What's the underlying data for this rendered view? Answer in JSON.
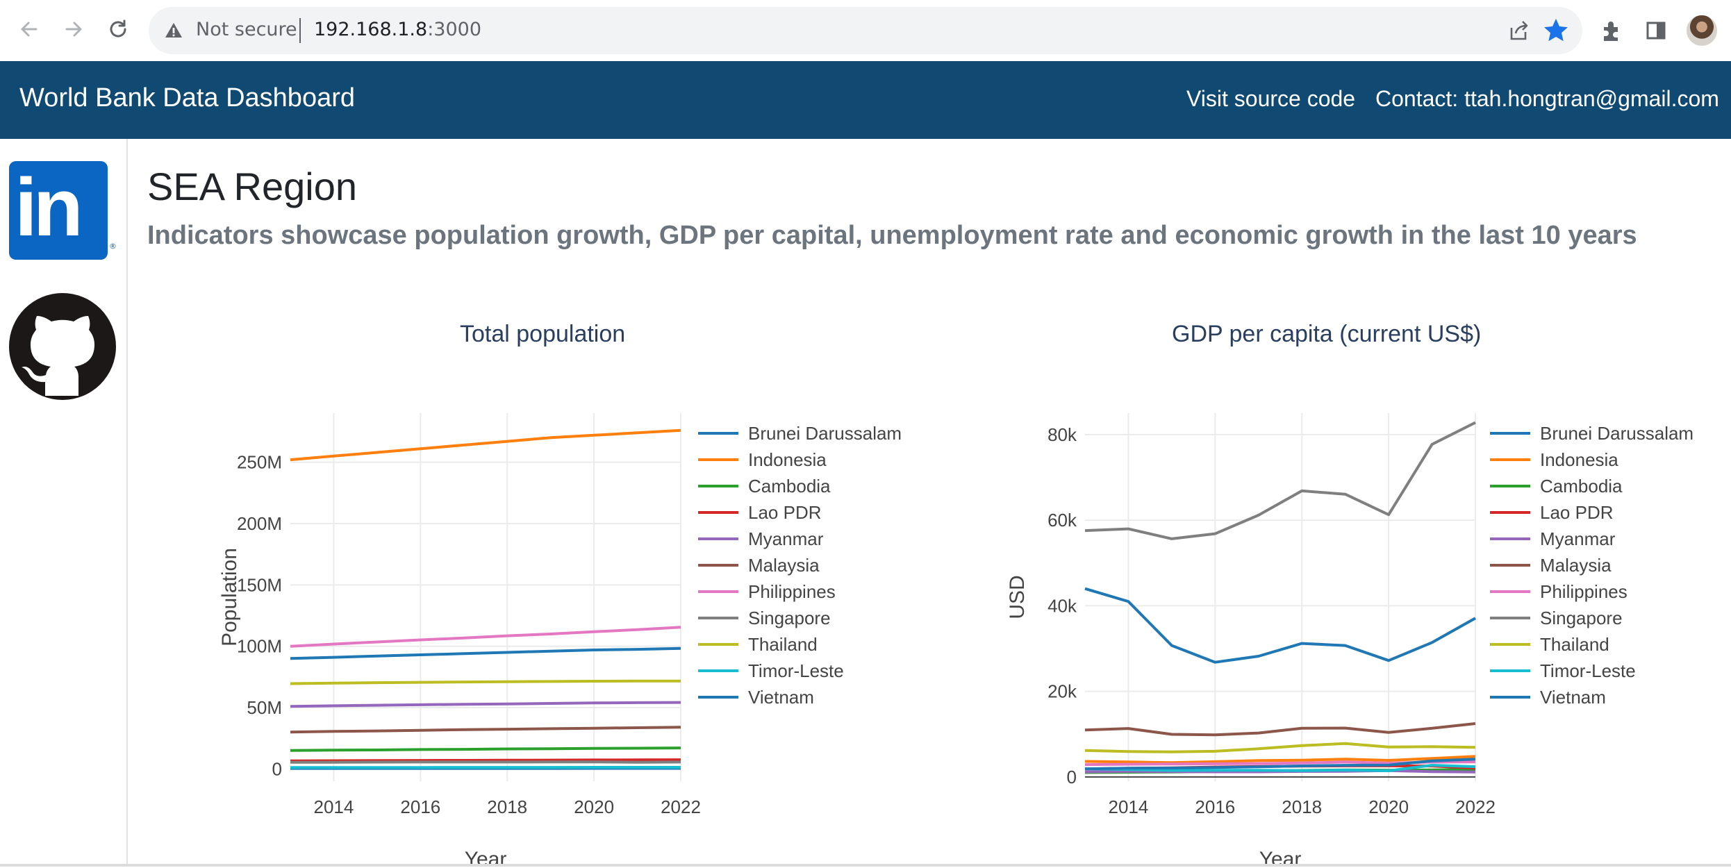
{
  "browser": {
    "security_label": "Not secure",
    "url_host": "192.168.1.8",
    "url_port": ":3000"
  },
  "navbar": {
    "brand": "World Bank Data Dashboard",
    "source_link": "Visit source code",
    "contact": "Contact: ttah.hongtran@gmail.com"
  },
  "sidebar": {
    "icons": [
      "linkedin-icon",
      "github-icon"
    ]
  },
  "page": {
    "title": "SEA Region",
    "subtitle": "Indicators showcase population growth, GDP per capital, unemployment rate and economic growth in the last 10 years"
  },
  "colors": {
    "navbar": "#104a72",
    "Brunei Darussalam": "#1f77b4",
    "Indonesia": "#ff7f0e",
    "Cambodia": "#2ca02c",
    "Lao PDR": "#d62728",
    "Myanmar": "#9467bd",
    "Malaysia": "#8c564b",
    "Philippines": "#e377c2",
    "Singapore": "#7f7f7f",
    "Thailand": "#bcbd22",
    "Timor-Leste": "#17becf",
    "Vietnam": "#1f77b4"
  },
  "chart_data": [
    {
      "type": "line",
      "title": "Total population",
      "xlabel": "Year",
      "ylabel": "Population",
      "xlim": [
        2013,
        2022
      ],
      "ylim": [
        -10000000,
        290000000
      ],
      "x_ticks": [
        2014,
        2016,
        2018,
        2020,
        2022
      ],
      "x_tick_labels": [
        "2014",
        "2016",
        "2018",
        "2020",
        "2022"
      ],
      "y_ticks": [
        0,
        50000000,
        100000000,
        150000000,
        200000000,
        250000000
      ],
      "y_tick_labels": [
        "0",
        "50M",
        "100M",
        "150M",
        "200M",
        "250M"
      ],
      "legend": "right",
      "x": [
        2013,
        2014,
        2015,
        2016,
        2017,
        2018,
        2019,
        2020,
        2021,
        2022
      ],
      "series": [
        {
          "name": "Brunei Darussalam",
          "values": [
            410000,
            415000,
            420000,
            425000,
            430000,
            435000,
            440000,
            445000,
            445000,
            450000
          ]
        },
        {
          "name": "Indonesia",
          "values": [
            252000000,
            255000000,
            258000000,
            261000000,
            264000000,
            267000000,
            270000000,
            272000000,
            274000000,
            276000000
          ]
        },
        {
          "name": "Cambodia",
          "values": [
            15000000,
            15300000,
            15500000,
            15800000,
            16000000,
            16300000,
            16500000,
            16700000,
            16900000,
            17100000
          ]
        },
        {
          "name": "Lao PDR",
          "values": [
            6600000,
            6700000,
            6800000,
            6900000,
            7000000,
            7100000,
            7200000,
            7300000,
            7400000,
            7500000
          ]
        },
        {
          "name": "Myanmar",
          "values": [
            51000000,
            51500000,
            51900000,
            52300000,
            52700000,
            53000000,
            53400000,
            53800000,
            54000000,
            54200000
          ]
        },
        {
          "name": "Malaysia",
          "values": [
            30000000,
            30600000,
            31000000,
            31500000,
            32000000,
            32400000,
            32800000,
            33200000,
            33600000,
            34000000
          ]
        },
        {
          "name": "Philippines",
          "values": [
            100000000,
            101800000,
            103500000,
            105200000,
            106700000,
            108500000,
            110000000,
            111800000,
            113500000,
            115500000
          ]
        },
        {
          "name": "Singapore",
          "values": [
            5400000,
            5470000,
            5540000,
            5610000,
            5610000,
            5640000,
            5700000,
            5690000,
            5450000,
            5640000
          ]
        },
        {
          "name": "Thailand",
          "values": [
            69500000,
            69900000,
            70300000,
            70600000,
            70900000,
            71100000,
            71300000,
            71500000,
            71600000,
            71700000
          ]
        },
        {
          "name": "Timor-Leste",
          "values": [
            1150000,
            1180000,
            1200000,
            1230000,
            1250000,
            1270000,
            1290000,
            1310000,
            1320000,
            1340000
          ]
        },
        {
          "name": "Vietnam",
          "values": [
            90000000,
            91000000,
            92000000,
            93000000,
            94000000,
            95000000,
            96000000,
            97000000,
            97500000,
            98200000
          ]
        }
      ]
    },
    {
      "type": "line",
      "title": "GDP per capita (current US$)",
      "xlabel": "Year",
      "ylabel": "USD",
      "xlim": [
        2013,
        2022
      ],
      "ylim": [
        -1000,
        85000
      ],
      "x_ticks": [
        2014,
        2016,
        2018,
        2020,
        2022
      ],
      "x_tick_labels": [
        "2014",
        "2016",
        "2018",
        "2020",
        "2022"
      ],
      "y_ticks": [
        0,
        20000,
        40000,
        60000,
        80000
      ],
      "y_tick_labels": [
        "0",
        "20k",
        "40k",
        "60k",
        "80k"
      ],
      "legend": "right",
      "x": [
        2013,
        2014,
        2015,
        2016,
        2017,
        2018,
        2019,
        2020,
        2021,
        2022
      ],
      "series": [
        {
          "name": "Brunei Darussalam",
          "values": [
            44000,
            41000,
            30700,
            26800,
            28200,
            31200,
            30700,
            27200,
            31400,
            37100
          ]
        },
        {
          "name": "Indonesia",
          "values": [
            3620,
            3490,
            3330,
            3560,
            3840,
            3900,
            4150,
            3870,
            4330,
            4790
          ]
        },
        {
          "name": "Cambodia",
          "values": [
            1030,
            1100,
            1160,
            1270,
            1380,
            1510,
            1640,
            1580,
            1630,
            1760
          ]
        },
        {
          "name": "Lao PDR",
          "values": [
            1880,
            2020,
            2130,
            2310,
            2420,
            2520,
            2590,
            2590,
            2550,
            2050
          ]
        },
        {
          "name": "Myanmar",
          "values": [
            1180,
            1280,
            1220,
            1190,
            1190,
            1290,
            1300,
            1480,
            1220,
            1150
          ]
        },
        {
          "name": "Malaysia",
          "values": [
            10970,
            11320,
            9960,
            9820,
            10260,
            11380,
            11410,
            10390,
            11370,
            12460
          ]
        },
        {
          "name": "Philippines",
          "values": [
            2870,
            2960,
            3000,
            3070,
            3120,
            3250,
            3480,
            3220,
            3460,
            3500
          ]
        },
        {
          "name": "Singapore",
          "values": [
            57560,
            57960,
            55650,
            56830,
            61160,
            66840,
            66070,
            61270,
            77710,
            82810
          ]
        },
        {
          "name": "Thailand",
          "values": [
            6170,
            5950,
            5840,
            5990,
            6600,
            7300,
            7810,
            7000,
            7060,
            6910
          ]
        },
        {
          "name": "Timor-Leste",
          "values": [
            1900,
            1750,
            1520,
            1560,
            1540,
            1460,
            1590,
            1440,
            2740,
            2390
          ]
        },
        {
          "name": "Vietnam",
          "values": [
            1890,
            2030,
            2090,
            2200,
            2370,
            2570,
            2720,
            2780,
            3760,
            4160
          ]
        }
      ]
    }
  ]
}
